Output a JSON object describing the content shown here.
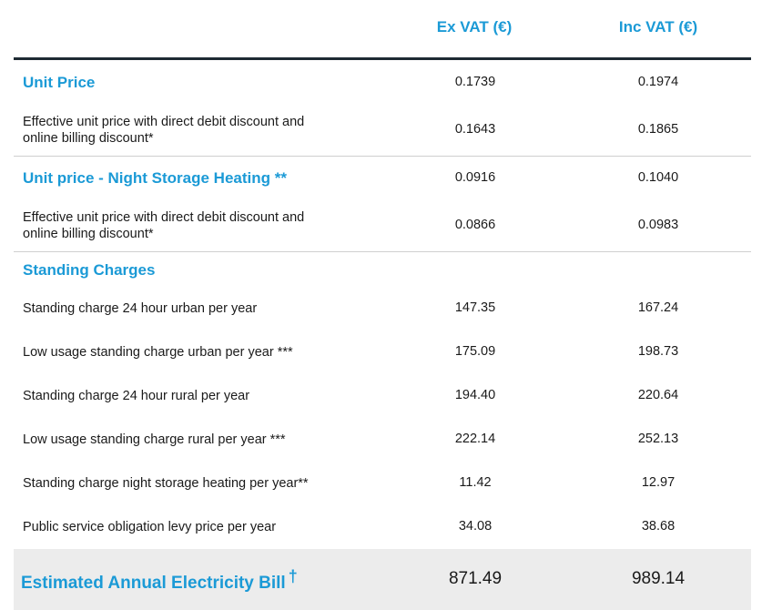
{
  "header": {
    "ex_vat": "Ex VAT (€)",
    "inc_vat": "Inc VAT (€)"
  },
  "sections": [
    {
      "title": "Unit Price",
      "ex": "0.1739",
      "inc": "0.1974",
      "sub_label_1": "Effective unit price with direct debit discount and",
      "sub_label_2": "online billing discount*",
      "sub_ex": "0.1643",
      "sub_inc": "0.1865"
    },
    {
      "title": "Unit price - Night Storage Heating **",
      "ex": "0.0916",
      "inc": "0.1040",
      "sub_label_1": "Effective unit price with direct debit discount and",
      "sub_label_2": "online billing discount*",
      "sub_ex": "0.0866",
      "sub_inc": "0.0983"
    }
  ],
  "standing": {
    "title": "Standing Charges",
    "rows": [
      {
        "label": "Standing charge 24 hour urban per year",
        "ex": "147.35",
        "inc": "167.24"
      },
      {
        "label": "Low usage standing charge urban per year ***",
        "ex": "175.09",
        "inc": "198.73"
      },
      {
        "label": "Standing charge 24 hour rural per year",
        "ex": "194.40",
        "inc": "220.64"
      },
      {
        "label": "Low usage standing charge rural per year ***",
        "ex": "222.14",
        "inc": "252.13"
      },
      {
        "label": "Standing charge night storage heating per year**",
        "ex": "11.42",
        "inc": "12.97"
      },
      {
        "label": "Public service obligation levy price per year",
        "ex": "34.08",
        "inc": "38.68"
      }
    ]
  },
  "total": {
    "label": "Estimated Annual Electricity Bill",
    "dagger": "†",
    "ex": "871.49",
    "inc": "989.14"
  }
}
